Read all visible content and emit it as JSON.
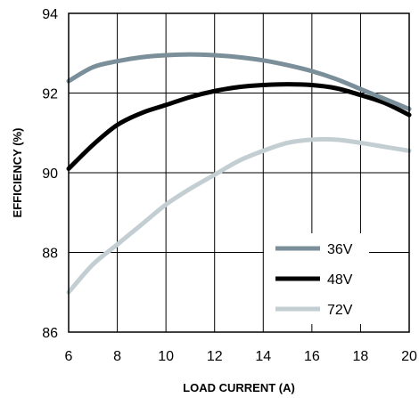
{
  "chart_data": {
    "type": "line",
    "xlabel": "LOAD CURRENT (A)",
    "ylabel": "EFFICIENCY (%)",
    "xlim": [
      6,
      20
    ],
    "ylim": [
      86,
      94
    ],
    "xticks": [
      6,
      8,
      10,
      12,
      14,
      16,
      18,
      20
    ],
    "yticks": [
      86,
      88,
      90,
      92,
      94
    ],
    "grid": true,
    "legend": "bottom-right",
    "series": [
      {
        "name": "36V",
        "color": "#7a8f99",
        "x": [
          6,
          7,
          8,
          9,
          10,
          11,
          12,
          13,
          14,
          15,
          16,
          17,
          18,
          19,
          20
        ],
        "y": [
          92.3,
          92.65,
          92.8,
          92.9,
          92.95,
          92.97,
          92.95,
          92.9,
          92.82,
          92.7,
          92.55,
          92.35,
          92.1,
          91.85,
          91.6
        ]
      },
      {
        "name": "48V",
        "color": "#000000",
        "x": [
          6,
          7,
          8,
          9,
          10,
          11,
          12,
          13,
          14,
          15,
          16,
          17,
          18,
          19,
          20
        ],
        "y": [
          90.1,
          90.7,
          91.2,
          91.5,
          91.7,
          91.9,
          92.05,
          92.15,
          92.2,
          92.22,
          92.2,
          92.12,
          91.95,
          91.75,
          91.45
        ]
      },
      {
        "name": "72V",
        "color": "#c3ced3",
        "x": [
          6,
          7,
          8,
          9,
          10,
          11,
          12,
          13,
          14,
          15,
          16,
          17,
          18,
          19,
          20
        ],
        "y": [
          87.0,
          87.7,
          88.2,
          88.7,
          89.2,
          89.6,
          89.95,
          90.3,
          90.55,
          90.75,
          90.83,
          90.83,
          90.75,
          90.65,
          90.55
        ]
      }
    ]
  }
}
